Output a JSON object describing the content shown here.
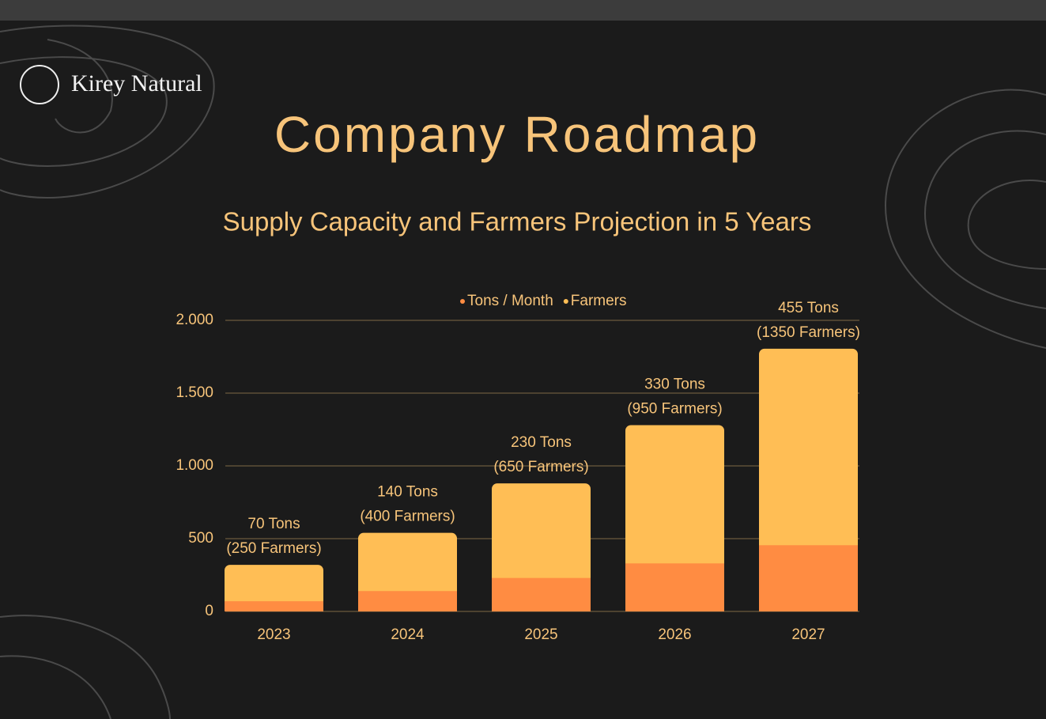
{
  "logo": "Kirey Natural",
  "chart_data": {
    "type": "bar",
    "stacked": true,
    "title": "Company Roadmap",
    "subtitle": "Supply Capacity and Farmers Projection in 5 Years",
    "categories": [
      "2023",
      "2024",
      "2025",
      "2026",
      "2027"
    ],
    "series": [
      {
        "name": "Tons / Month",
        "color": "#ff8c42",
        "values": [
          70,
          140,
          230,
          330,
          455
        ],
        "value_labels": [
          "70 Tons",
          "140 Tons",
          "230 Tons",
          "330 Tons",
          "455 Tons"
        ]
      },
      {
        "name": "Farmers",
        "color": "#ffbe55",
        "values": [
          250,
          400,
          650,
          950,
          1350
        ],
        "value_labels": [
          "(250 Farmers)",
          "(400 Farmers)",
          "(650 Farmers)",
          "(950 Farmers)",
          "(1350 Farmers)"
        ]
      }
    ],
    "ylim": [
      0,
      2000
    ],
    "yticks": [
      0,
      500,
      {
        "value": 1000,
        "label": "1.000"
      },
      {
        "value": 1500,
        "label": "1.500"
      },
      {
        "value": 2000,
        "label": "2.000"
      }
    ],
    "grid": true,
    "legend": "top"
  }
}
